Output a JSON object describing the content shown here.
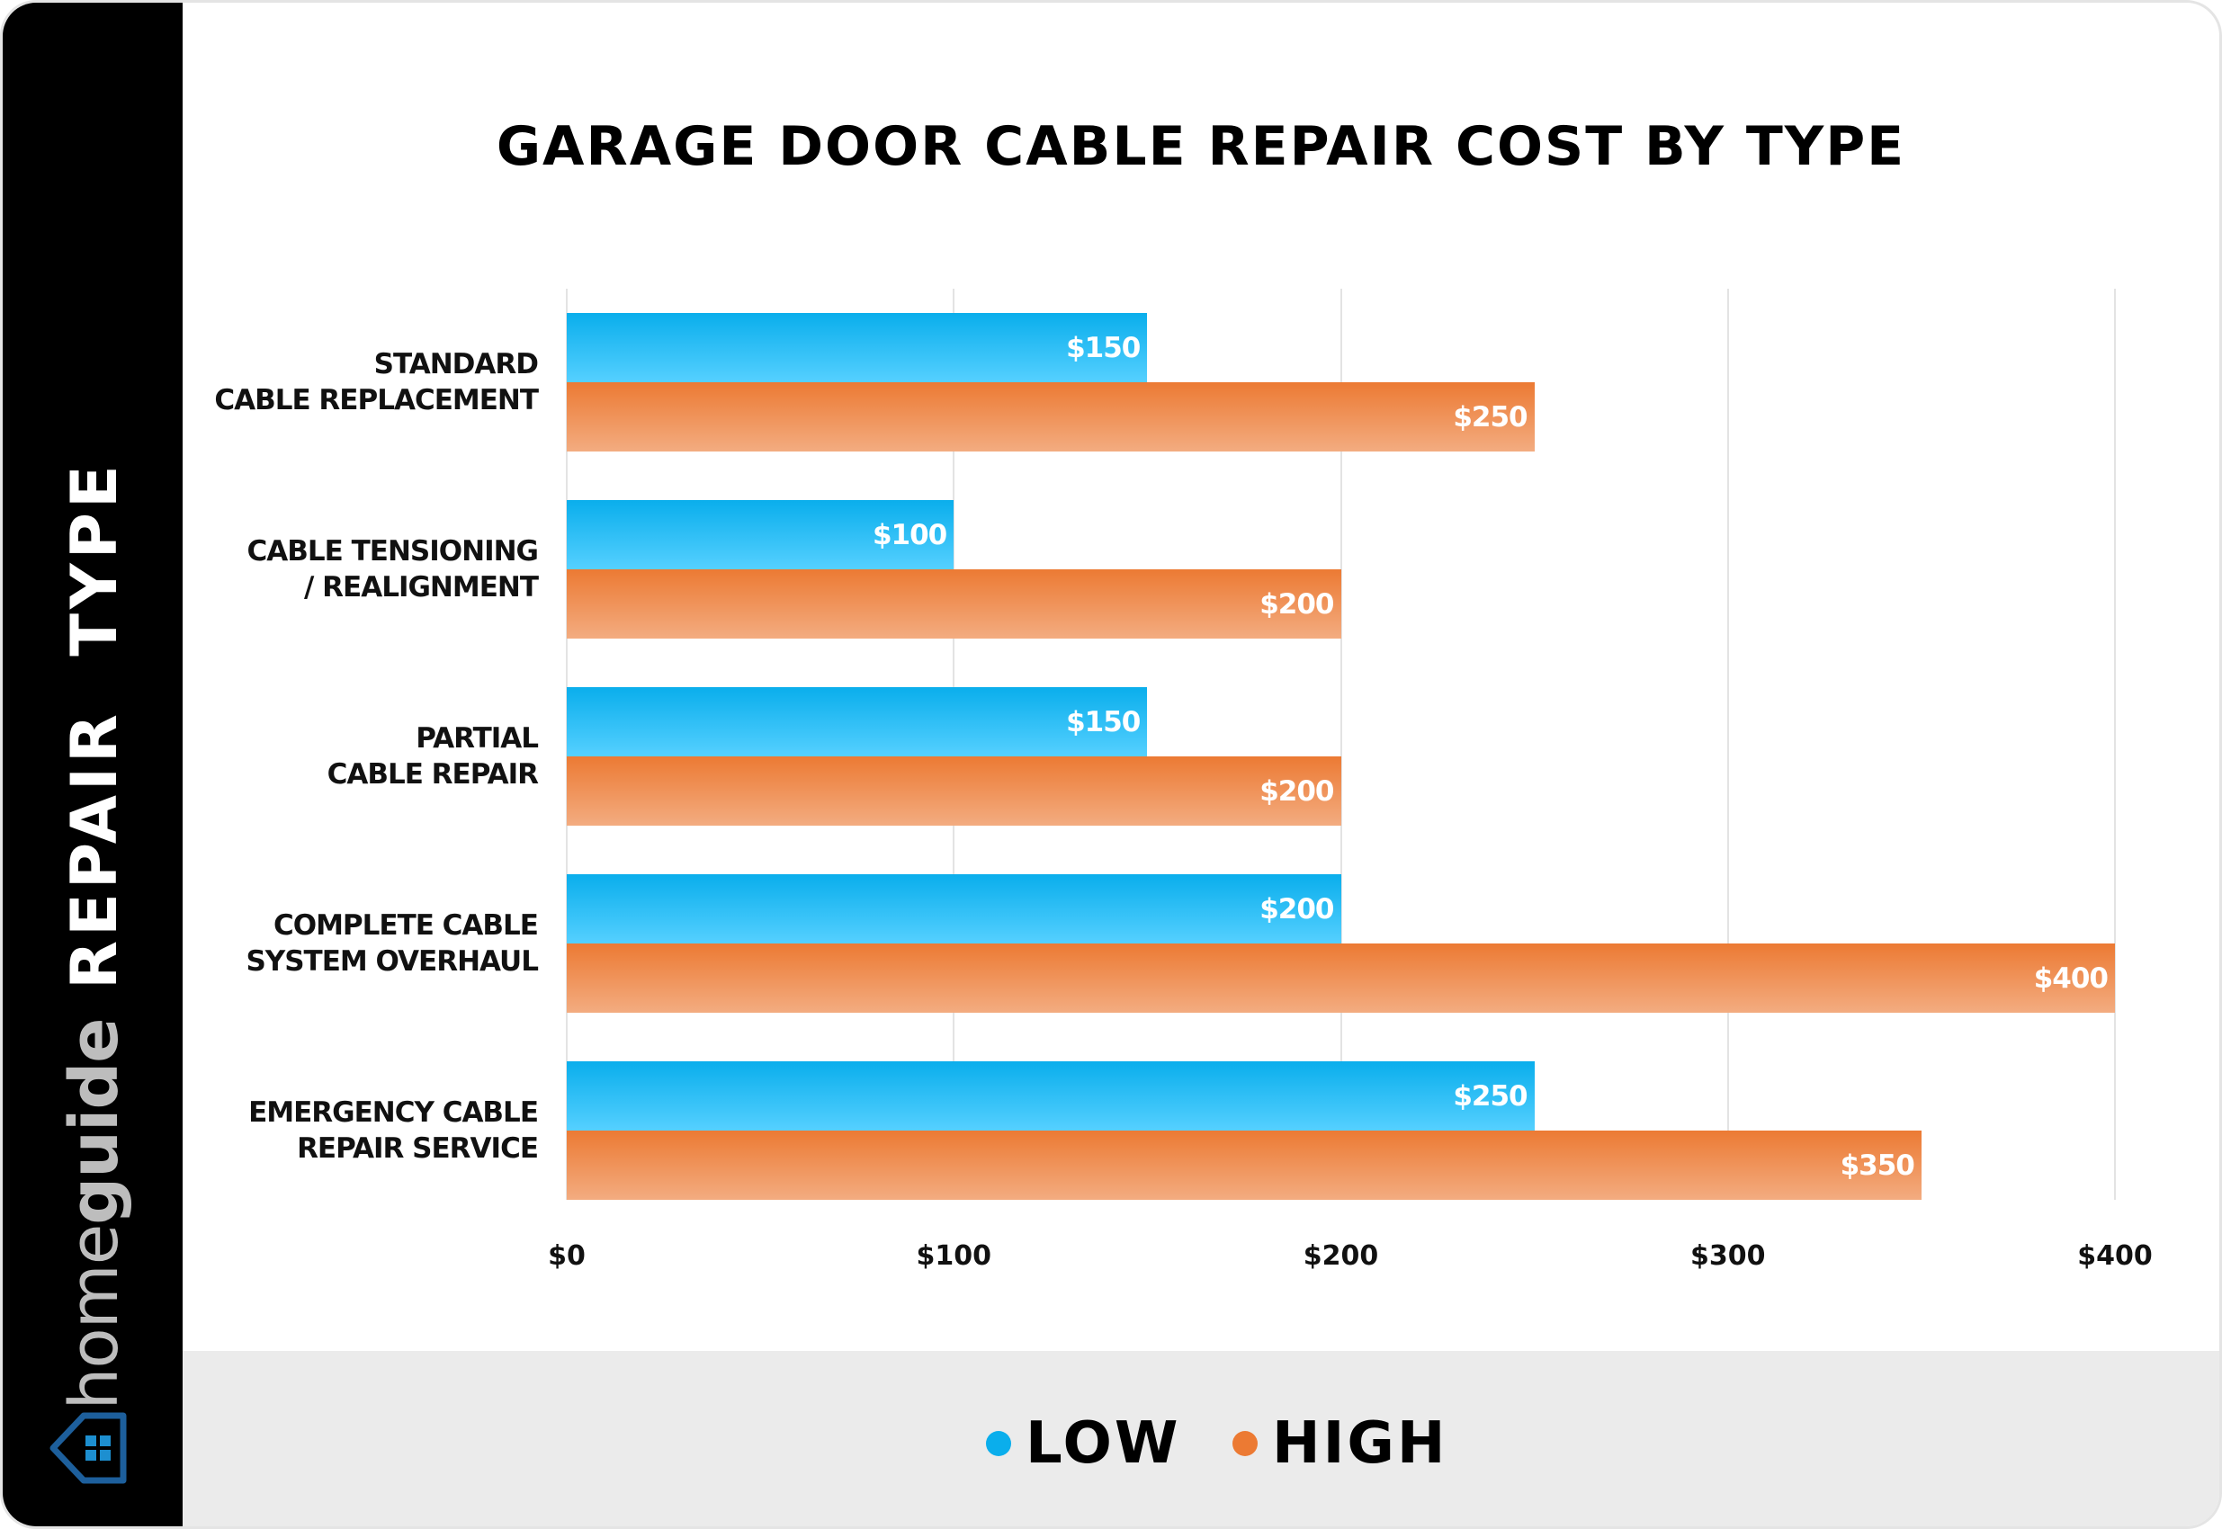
{
  "brand": {
    "name_light": "home",
    "name_bold": "guide",
    "logo": "house-icon"
  },
  "y_axis_title": "REPAIR TYPE",
  "chart_data": {
    "type": "bar",
    "orientation": "horizontal",
    "title": "GARAGE DOOR CABLE REPAIR COST BY TYPE",
    "xlabel": "",
    "ylabel": "REPAIR TYPE",
    "categories": [
      "STANDARD\nCABLE REPLACEMENT",
      "CABLE TENSIONING\n/ REALIGNMENT",
      "PARTIAL\nCABLE REPAIR",
      "COMPLETE CABLE\nSYSTEM OVERHAUL",
      "EMERGENCY CABLE\nREPAIR SERVICE"
    ],
    "series": [
      {
        "name": "LOW",
        "color": "#0aaeec",
        "values": [
          150,
          100,
          150,
          200,
          250
        ],
        "labels": [
          "$150",
          "$100",
          "$150",
          "$200",
          "$250"
        ]
      },
      {
        "name": "HIGH",
        "color": "#ec7a33",
        "values": [
          250,
          200,
          200,
          400,
          350
        ],
        "labels": [
          "$250",
          "$200",
          "$200",
          "$400",
          "$350"
        ]
      }
    ],
    "xlim": [
      0,
      400
    ],
    "xticks": [
      0,
      100,
      200,
      300,
      400
    ],
    "xtick_labels": [
      "$0",
      "$100",
      "$200",
      "$300",
      "$400"
    ],
    "grid": true,
    "legend": "bottom-center"
  }
}
